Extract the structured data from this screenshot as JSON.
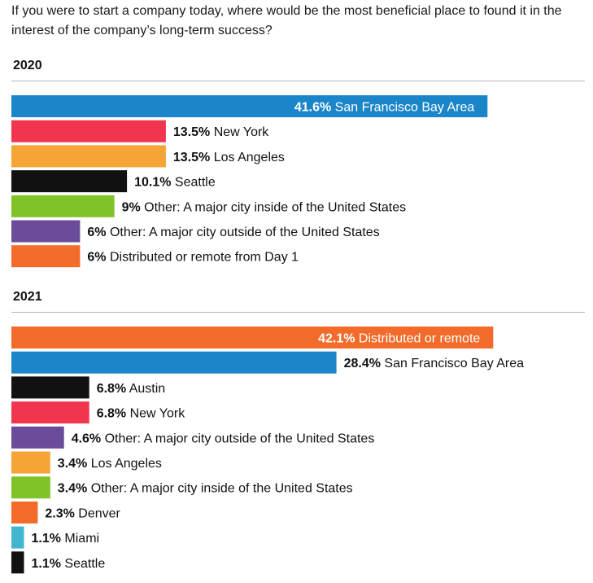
{
  "question": "If you were to start a company today, where would be the most beneficial place to found it in the interest of the company’s long-term success?",
  "colors": {
    "blue": "#1a86c9",
    "red": "#f2354f",
    "yellow": "#f4a535",
    "black": "#111111",
    "green": "#7fc328",
    "purple": "#6b4c9a",
    "orange": "#f26b2a",
    "teal": "#43b6cf"
  },
  "chart_data": [
    {
      "type": "bar",
      "orientation": "horizontal",
      "title": "2020",
      "xlim": [
        0,
        50
      ],
      "categories": [
        "San Francisco Bay Area",
        "New York",
        "Los Angeles",
        "Seattle",
        "Other: A major city inside of the United States",
        "Other: A major city outside of the United States",
        "Distributed or remote from Day 1"
      ],
      "values": [
        41.6,
        13.5,
        13.5,
        10.1,
        9,
        6,
        6
      ],
      "value_labels": [
        "41.6%",
        "13.5%",
        "13.5%",
        "10.1%",
        "9%",
        "6%",
        "6%"
      ],
      "bar_colors": [
        "blue",
        "red",
        "yellow",
        "black",
        "green",
        "purple",
        "orange"
      ],
      "label_inside": [
        true,
        false,
        false,
        false,
        false,
        false,
        false
      ]
    },
    {
      "type": "bar",
      "orientation": "horizontal",
      "title": "2021",
      "xlim": [
        0,
        50
      ],
      "categories": [
        "Distributed or remote",
        "San Francisco Bay Area",
        "Austin",
        "New York",
        "Other: A major city outside of the United States",
        "Los Angeles",
        "Other: A major city inside of the United States",
        "Denver",
        "Miami",
        "Seattle"
      ],
      "values": [
        42.1,
        28.4,
        6.8,
        6.8,
        4.6,
        3.4,
        3.4,
        2.3,
        1.1,
        1.1
      ],
      "value_labels": [
        "42.1%",
        "28.4%",
        "6.8%",
        "6.8%",
        "4.6%",
        "3.4%",
        "3.4%",
        "2.3%",
        "1.1%",
        "1.1%"
      ],
      "bar_colors": [
        "orange",
        "blue",
        "black",
        "red",
        "purple",
        "yellow",
        "green",
        "orange",
        "teal",
        "black"
      ],
      "label_inside": [
        true,
        false,
        false,
        false,
        false,
        false,
        false,
        false,
        false,
        false
      ]
    }
  ]
}
